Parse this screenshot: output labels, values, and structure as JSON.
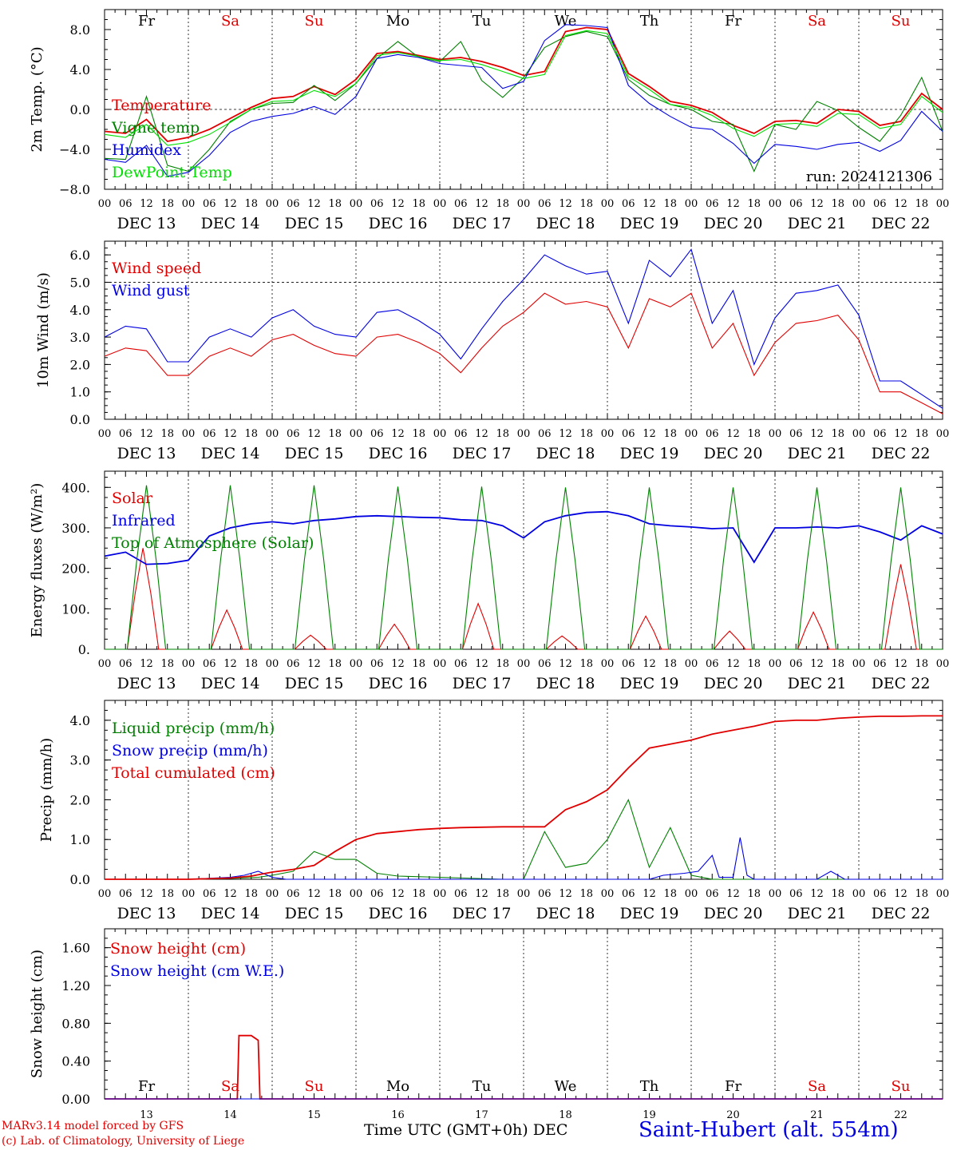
{
  "chart_data": [
    {
      "type": "line",
      "ylabel": "2m Temp. (°C)",
      "ylim": [
        -8,
        10
      ],
      "yticks": [
        -8,
        -4,
        0,
        4,
        8
      ],
      "ytick_labels": [
        "−8.0",
        "−4.0",
        "0.0",
        "4.0",
        "8.0"
      ],
      "ref_line": 0,
      "day_names": [
        "Fr",
        "Sa",
        "Su",
        "Mo",
        "Tu",
        "We",
        "Th",
        "Fr",
        "Sa",
        "Su"
      ],
      "run_label": "run: 2024121306",
      "series": [
        {
          "name": "Temperature",
          "color": "#e00000",
          "x": [
            0,
            6,
            12,
            18,
            24,
            30,
            36,
            42,
            48,
            54,
            60,
            66,
            72,
            78,
            84,
            90,
            96,
            102,
            108,
            114,
            120,
            126,
            132,
            138,
            144,
            150,
            156,
            162,
            168,
            174,
            180,
            186,
            192,
            198,
            204,
            210,
            216,
            222,
            228,
            234,
            240
          ],
          "values": [
            -2.2,
            -2.4,
            -1.0,
            -3.2,
            -2.8,
            -2.0,
            -0.9,
            0.2,
            1.1,
            1.3,
            2.3,
            1.5,
            3.0,
            5.6,
            5.8,
            5.4,
            5.0,
            5.2,
            4.8,
            4.2,
            3.4,
            3.8,
            7.8,
            8.2,
            8.0,
            3.6,
            2.3,
            0.8,
            0.4,
            -0.3,
            -1.6,
            -2.4,
            -1.2,
            -1.1,
            -1.4,
            0.0,
            -0.2,
            -1.6,
            -1.2,
            1.6,
            0.0
          ]
        },
        {
          "name": "Vigne temp",
          "color": "#008000",
          "x": [
            0,
            6,
            12,
            18,
            24,
            30,
            36,
            42,
            48,
            54,
            60,
            66,
            72,
            78,
            84,
            90,
            96,
            102,
            108,
            114,
            120,
            126,
            132,
            138,
            144,
            150,
            156,
            162,
            168,
            174,
            180,
            186,
            192,
            198,
            204,
            210,
            216,
            222,
            228,
            234,
            240
          ],
          "values": [
            -4.9,
            -5.0,
            1.3,
            -5.6,
            -6.2,
            -4.0,
            -1.2,
            0.0,
            0.6,
            0.7,
            2.4,
            0.9,
            2.6,
            5.1,
            6.8,
            5.2,
            4.8,
            6.8,
            2.9,
            1.2,
            3.2,
            6.2,
            7.3,
            7.8,
            7.3,
            3.0,
            1.4,
            0.5,
            0.0,
            -1.2,
            -1.5,
            -6.2,
            -1.5,
            -2.0,
            0.8,
            -0.1,
            -1.8,
            -3.2,
            -0.6,
            3.2,
            -2.2
          ]
        },
        {
          "name": "Humidex",
          "color": "#0000e0",
          "x": [
            0,
            6,
            12,
            18,
            24,
            30,
            36,
            42,
            48,
            54,
            60,
            66,
            72,
            78,
            84,
            90,
            96,
            102,
            108,
            114,
            120,
            126,
            132,
            138,
            144,
            150,
            156,
            162,
            168,
            174,
            180,
            186,
            192,
            198,
            204,
            210,
            216,
            222,
            228,
            234,
            240
          ],
          "values": [
            -5.0,
            -5.3,
            -3.6,
            -6.7,
            -6.3,
            -4.6,
            -2.3,
            -1.2,
            -0.7,
            -0.4,
            0.3,
            -0.5,
            1.3,
            5.1,
            5.5,
            5.2,
            4.6,
            4.4,
            4.2,
            2.1,
            2.8,
            6.9,
            8.5,
            8.4,
            8.2,
            2.4,
            0.6,
            -0.7,
            -1.8,
            -2.0,
            -3.4,
            -5.4,
            -3.5,
            -3.7,
            -4.0,
            -3.5,
            -3.3,
            -4.2,
            -3.1,
            -0.2,
            -2.2
          ]
        },
        {
          "name": "DewPoint Temp",
          "color": "#00e000",
          "x": [
            0,
            6,
            12,
            18,
            24,
            30,
            36,
            42,
            48,
            54,
            60,
            66,
            72,
            78,
            84,
            90,
            96,
            102,
            108,
            114,
            120,
            126,
            132,
            138,
            144,
            150,
            156,
            162,
            168,
            174,
            180,
            186,
            192,
            198,
            204,
            210,
            216,
            222,
            228,
            234,
            240
          ],
          "values": [
            -2.5,
            -2.8,
            -1.5,
            -3.6,
            -3.3,
            -2.5,
            -1.3,
            0.0,
            0.8,
            0.9,
            1.9,
            1.3,
            2.6,
            5.4,
            5.7,
            5.3,
            4.9,
            5.0,
            4.5,
            3.8,
            3.1,
            3.5,
            7.4,
            7.9,
            7.6,
            3.3,
            2.0,
            0.5,
            0.2,
            -0.6,
            -1.9,
            -2.7,
            -1.5,
            -1.4,
            -1.7,
            -0.4,
            -0.5,
            -1.9,
            -1.5,
            1.3,
            -0.3
          ]
        }
      ]
    },
    {
      "type": "line",
      "ylabel": "10m Wind (m/s)",
      "ylim": [
        0,
        6.5
      ],
      "yticks": [
        0,
        1,
        2,
        3,
        4,
        5,
        6
      ],
      "ytick_labels": [
        "0.0",
        "1.0",
        "2.0",
        "3.0",
        "4.0",
        "5.0",
        "6.0"
      ],
      "ref_line": 5,
      "series": [
        {
          "name": "Wind speed",
          "color": "#e00000",
          "x": [
            0,
            6,
            12,
            18,
            24,
            30,
            36,
            42,
            48,
            54,
            60,
            66,
            72,
            78,
            84,
            90,
            96,
            102,
            108,
            114,
            120,
            126,
            132,
            138,
            144,
            150,
            156,
            162,
            168,
            174,
            180,
            186,
            192,
            198,
            204,
            210,
            216,
            222,
            228,
            234,
            240
          ],
          "values": [
            2.3,
            2.6,
            2.5,
            1.6,
            1.6,
            2.3,
            2.6,
            2.3,
            2.9,
            3.1,
            2.7,
            2.4,
            2.3,
            3.0,
            3.1,
            2.8,
            2.4,
            1.7,
            2.6,
            3.4,
            3.9,
            4.6,
            4.2,
            4.3,
            4.1,
            2.6,
            4.4,
            4.1,
            4.6,
            2.6,
            3.5,
            1.6,
            2.8,
            3.5,
            3.6,
            3.8,
            2.9,
            1.0,
            1.0,
            0.6,
            0.2
          ]
        },
        {
          "name": "Wind gust",
          "color": "#0000e0",
          "x": [
            0,
            6,
            12,
            18,
            24,
            30,
            36,
            42,
            48,
            54,
            60,
            66,
            72,
            78,
            84,
            90,
            96,
            102,
            108,
            114,
            120,
            126,
            132,
            138,
            144,
            150,
            156,
            162,
            168,
            174,
            180,
            186,
            192,
            198,
            204,
            210,
            216,
            222,
            228,
            234,
            240
          ],
          "values": [
            3.0,
            3.4,
            3.3,
            2.1,
            2.1,
            3.0,
            3.3,
            3.0,
            3.7,
            4.0,
            3.4,
            3.1,
            3.0,
            3.9,
            4.0,
            3.6,
            3.1,
            2.2,
            3.3,
            4.3,
            5.1,
            6.0,
            5.6,
            5.3,
            5.4,
            3.5,
            5.8,
            5.2,
            6.2,
            3.5,
            4.7,
            2.0,
            3.7,
            4.6,
            4.7,
            4.9,
            3.8,
            1.4,
            1.4,
            0.9,
            0.4
          ]
        }
      ]
    },
    {
      "type": "line",
      "ylabel": "Energy fluxes (W/m²)",
      "ylim": [
        0,
        440
      ],
      "yticks": [
        0,
        100,
        200,
        300,
        400
      ],
      "ytick_labels": [
        "0.",
        "100.",
        "200.",
        "300.",
        "400."
      ],
      "series": [
        {
          "name": "Solar",
          "color": "#e00000",
          "peak_hour": [
            11,
            35,
            59,
            83,
            107,
            131,
            155,
            179,
            203,
            228
          ],
          "peak_value": [
            250,
            97,
            35,
            62,
            113,
            33,
            82,
            45,
            92,
            210
          ]
        },
        {
          "name": "Infrared",
          "color": "#0000e0",
          "x": [
            0,
            6,
            12,
            18,
            24,
            30,
            36,
            42,
            48,
            54,
            60,
            66,
            72,
            78,
            84,
            90,
            96,
            102,
            108,
            114,
            120,
            126,
            132,
            138,
            144,
            150,
            156,
            162,
            168,
            174,
            180,
            186,
            192,
            198,
            204,
            210,
            216,
            222,
            228,
            234,
            240
          ],
          "values": [
            230,
            240,
            210,
            212,
            220,
            280,
            300,
            310,
            315,
            310,
            318,
            322,
            328,
            330,
            328,
            326,
            325,
            320,
            318,
            305,
            275,
            315,
            330,
            338,
            340,
            330,
            310,
            305,
            302,
            298,
            300,
            215,
            300,
            300,
            302,
            300,
            305,
            290,
            270,
            305,
            285
          ]
        },
        {
          "name": "Top of Atmosphere (Solar)",
          "color": "#008000",
          "peak_hour": [
            12,
            36,
            60,
            84,
            108,
            132,
            156,
            180,
            204,
            228
          ],
          "peak_value": [
            405,
            405,
            405,
            402,
            402,
            400,
            400,
            400,
            400,
            400
          ]
        }
      ]
    },
    {
      "type": "line",
      "ylabel": "Precip (mm/h)",
      "ylim": [
        0,
        4.5
      ],
      "yticks": [
        0,
        1,
        2,
        3,
        4
      ],
      "ytick_labels": [
        "0.0",
        "1.0",
        "2.0",
        "3.0",
        "4.0"
      ],
      "series": [
        {
          "name": "Liquid precip (mm/h)",
          "color": "#008000",
          "x": [
            0,
            24,
            36,
            44,
            48,
            54,
            60,
            66,
            72,
            78,
            84,
            96,
            114,
            120,
            126,
            132,
            138,
            144,
            150,
            156,
            162,
            168,
            174,
            180,
            192,
            204,
            216,
            228,
            240
          ],
          "values": [
            0,
            0,
            0.02,
            0.05,
            0.1,
            0.2,
            0.7,
            0.5,
            0.5,
            0.15,
            0.08,
            0.05,
            0,
            0,
            1.2,
            0.3,
            0.4,
            1.0,
            2.0,
            0.3,
            1.3,
            0.1,
            0,
            0,
            0,
            0,
            0,
            0,
            0
          ]
        },
        {
          "name": "Snow precip (mm/h)",
          "color": "#0000e0",
          "x": [
            0,
            24,
            36,
            40,
            44,
            48,
            52,
            60,
            72,
            96,
            156,
            160,
            166,
            170,
            174,
            176,
            180,
            182,
            184,
            186,
            192,
            204,
            208,
            212,
            240
          ],
          "values": [
            0,
            0,
            0.05,
            0.1,
            0.2,
            0.05,
            0,
            0,
            0,
            0,
            0,
            0.1,
            0.15,
            0.2,
            0.6,
            0.05,
            0.05,
            1.05,
            0.1,
            0,
            0,
            0,
            0.2,
            0,
            0
          ]
        },
        {
          "name": "Total cumulated (cm)",
          "color": "#e00000",
          "x": [
            0,
            24,
            36,
            42,
            48,
            54,
            60,
            66,
            72,
            78,
            84,
            90,
            96,
            102,
            108,
            114,
            120,
            126,
            132,
            138,
            144,
            150,
            156,
            162,
            168,
            174,
            180,
            186,
            192,
            198,
            204,
            210,
            216,
            222,
            228,
            234,
            240
          ],
          "values": [
            0,
            0,
            0.03,
            0.08,
            0.18,
            0.25,
            0.35,
            0.7,
            1.0,
            1.15,
            1.2,
            1.25,
            1.28,
            1.3,
            1.31,
            1.32,
            1.32,
            1.32,
            1.75,
            1.95,
            2.25,
            2.8,
            3.3,
            3.4,
            3.5,
            3.65,
            3.75,
            3.85,
            3.97,
            4.0,
            4.0,
            4.05,
            4.08,
            4.1,
            4.1,
            4.11,
            4.11
          ]
        }
      ]
    },
    {
      "type": "line",
      "ylabel": "Snow height (cm)",
      "ylim": [
        0,
        1.8
      ],
      "yticks": [
        0,
        0.4,
        0.8,
        1.2,
        1.6
      ],
      "ytick_labels": [
        "0.00",
        "0.40",
        "0.80",
        "1.20",
        "1.60"
      ],
      "day_numbers": [
        "13",
        "14",
        "15",
        "16",
        "17",
        "18",
        "19",
        "20",
        "21",
        "22"
      ],
      "series": [
        {
          "name": "Snow height (cm)",
          "color": "#e00000",
          "x": [
            0,
            38,
            38.5,
            42,
            44,
            44.5,
            240
          ],
          "values": [
            0,
            0,
            0.67,
            0.67,
            0.62,
            0,
            0
          ]
        },
        {
          "name": "Snow height (cm W.E.)",
          "color": "#0000e0",
          "x": [
            0,
            240
          ],
          "values": [
            0,
            0
          ]
        }
      ]
    }
  ],
  "time_axis": {
    "hour_labels": [
      "00",
      "06",
      "12",
      "18"
    ],
    "final_hour_label": "00",
    "date_labels": [
      "DEC 13",
      "DEC 14",
      "DEC 15",
      "DEC 16",
      "DEC 17",
      "DEC 18",
      "DEC 19",
      "DEC 20",
      "DEC 21",
      "DEC 22"
    ],
    "xlabel": "Time UTC (GMT+0h)",
    "xlabel_month": "DEC",
    "weekend_color": "#e00000"
  },
  "footer": {
    "credit_line1": "MARv3.14 model forced by GFS",
    "credit_line2": "(c) Lab. of Climatology, University of Liege",
    "station": "Saint-Hubert (alt. 554m)"
  },
  "colors": {
    "red": "#e00000",
    "green": "#008000",
    "blue": "#0000e0",
    "lightgreen": "#00e000"
  }
}
